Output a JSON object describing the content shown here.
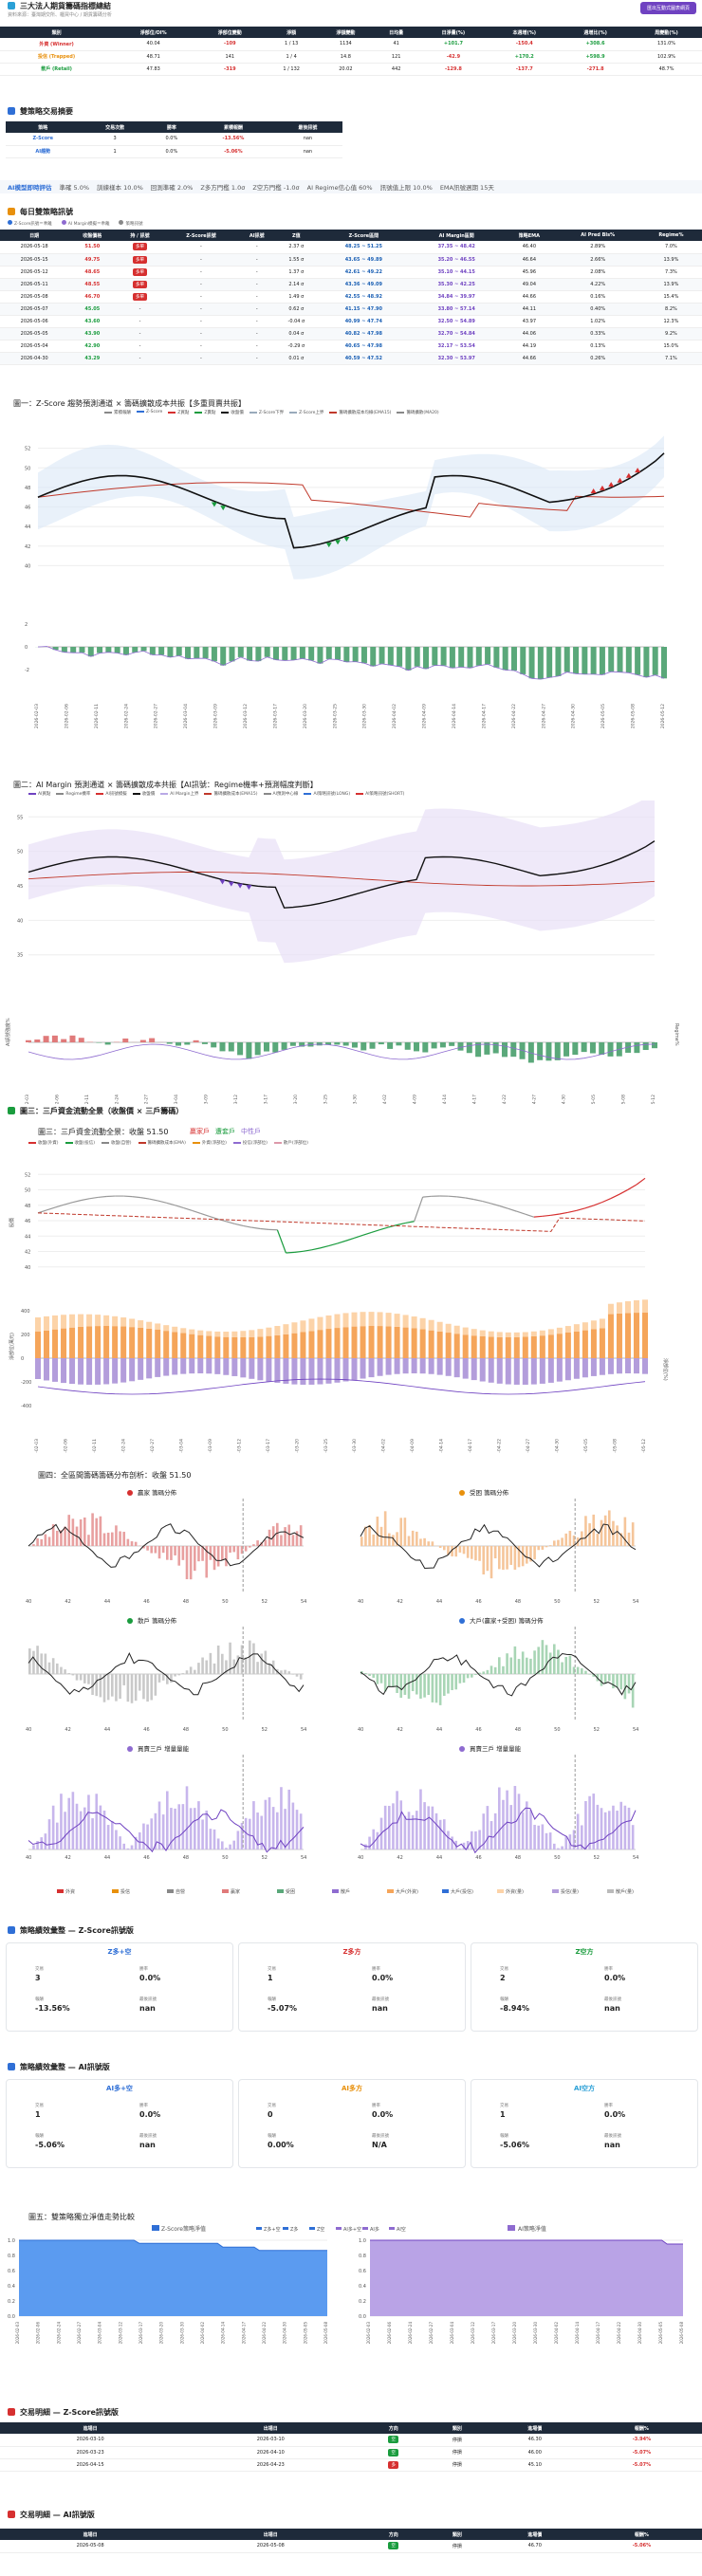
{
  "header": {
    "title": "三大法人期貨籌碼指標總結",
    "subtitle": "資料來源：臺灣期交所、櫃買中心 / 期貨籌碼分析",
    "export_label": "匯出互動式圖表網頁"
  },
  "summary": {
    "columns": [
      "類別",
      "淨部位/OI%",
      "淨部位變動",
      "淨額",
      "淨額變動",
      "日均量",
      "日淨量(%)",
      "本週增(%)",
      "週增比(%)",
      "周變動(%)"
    ],
    "rows": [
      {
        "name": "外資 (Winner)",
        "c1": "40.04",
        "c2": "-109",
        "c3": "1 / 13",
        "c4": "1134",
        "c5": "41",
        "c6": "+101.7",
        "c7": "-150.4",
        "c8": "+308.6",
        "c9": "131.0%"
      },
      {
        "name": "投信 (Trapped)",
        "c1": "48.71",
        "c2": "141",
        "c3": "1 / 4",
        "c4": "14.8",
        "c5": "121",
        "c6": "-42.9",
        "c7": "+170.2",
        "c8": "+598.9",
        "c9": "102.9%"
      },
      {
        "name": "散戶 (Retail)",
        "c1": "47.83",
        "c2": "-319",
        "c3": "1 / 132",
        "c4": "20.02",
        "c5": "442",
        "c6": "-129.8",
        "c7": "-137.7",
        "c8": "-271.8",
        "c9": "48.7%"
      }
    ]
  },
  "strategy": {
    "title": "雙策略交易摘要",
    "columns": [
      "策略",
      "交易次數",
      "勝率",
      "累積報酬",
      "最後訊號"
    ],
    "rows": [
      {
        "name": "Z-Score",
        "n": "3",
        "wr": "0.0%",
        "ret": "-13.56%",
        "last": "nan"
      },
      {
        "name": "AI趨勢",
        "n": "1",
        "wr": "0.0%",
        "ret": "-5.06%",
        "last": "nan"
      }
    ]
  },
  "ai_bar": {
    "label": "AI模型即時評估",
    "items": [
      "準確 5.0%",
      "訓練樣本 10.0%",
      "回測準確 2.0%",
      "Z多方門檻 1.0σ",
      "Z空方門檻 -1.0σ",
      "AI Regime信心值 60%",
      "訊號值上限 10.0%",
      "EMA訊號週期 15天"
    ]
  },
  "signals": {
    "title": "每日雙策略訊號",
    "legend": [
      "Z-Score訊號＝乖離",
      "AI Margin模擬＝乖離",
      "策略訊號"
    ],
    "columns": [
      "日期",
      "收盤價格",
      "持 / 訊號",
      "Z-Score訊號",
      "AI訊號",
      "Z值",
      "Z-Score區間",
      "AI Margin區間",
      "策略EMA",
      "AI Pred Bls%",
      "Regime%"
    ],
    "rows": [
      [
        "2026-05-18",
        "51.50",
        "多單",
        "-",
        "-",
        "2.37 σ",
        "48.25 ~ 51.25",
        "37.35 ~ 48.42",
        "46.40",
        "2.89%",
        "7.0%"
      ],
      [
        "2026-05-15",
        "49.75",
        "多單",
        "-",
        "-",
        "1.55 σ",
        "43.65 ~ 49.89",
        "35.20 ~ 46.55",
        "46.64",
        "2.66%",
        "13.9%"
      ],
      [
        "2026-05-12",
        "48.65",
        "多單",
        "-",
        "-",
        "1.37 σ",
        "42.61 ~ 49.22",
        "35.10 ~ 44.15",
        "45.96",
        "2.08%",
        "7.3%"
      ],
      [
        "2026-05-11",
        "48.55",
        "多單",
        "-",
        "-",
        "2.14 σ",
        "43.36 ~ 49.09",
        "35.30 ~ 42.25",
        "49.04",
        "4.22%",
        "13.9%"
      ],
      [
        "2026-05-08",
        "46.70",
        "多單",
        "-",
        "-",
        "1.49 σ",
        "42.55 ~ 48.92",
        "34.84 ~ 39.97",
        "44.66",
        "0.16%",
        "15.4%"
      ],
      [
        "2026-05-07",
        "45.05",
        "-",
        "-",
        "-",
        "0.62 σ",
        "41.15 ~ 47.90",
        "33.80 ~ 57.14",
        "44.11",
        "0.40%",
        "8.2%"
      ],
      [
        "2026-05-06",
        "43.60",
        "-",
        "-",
        "-",
        "-0.04 σ",
        "40.99 ~ 47.74",
        "32.50 ~ 54.89",
        "43.97",
        "1.02%",
        "12.3%"
      ],
      [
        "2026-05-05",
        "43.90",
        "-",
        "-",
        "-",
        "0.04 σ",
        "40.82 ~ 47.98",
        "32.70 ~ 54.84",
        "44.06",
        "0.33%",
        "9.2%"
      ],
      [
        "2026-05-04",
        "42.90",
        "-",
        "-",
        "-",
        "-0.29 σ",
        "40.65 ~ 47.98",
        "32.17 ~ 53.54",
        "44.19",
        "0.13%",
        "15.0%"
      ],
      [
        "2026-04-30",
        "43.29",
        "-",
        "-",
        "-",
        "0.01 σ",
        "40.59 ~ 47.52",
        "32.30 ~ 53.97",
        "44.66",
        "0.26%",
        "7.1%"
      ]
    ]
  },
  "chart1": {
    "title": "圖一：Z-Score 趨勢預測通道 × 籌碼擴散成本共振【多重買賣共振】",
    "legend": [
      "累積報酬",
      "Z-Score",
      "Z買點",
      "Z賣點",
      "收盤價",
      "Z-Score下界",
      "Z-Score上界",
      "籌碼擴散成本均線(EMA15)",
      "籌碼擴散(MA20)"
    ]
  },
  "chart2": {
    "title": "圖二：AI Margin 預測通道 × 籌碼擴散成本共振【AI訊號：Regime機率+預測幅度判斷】",
    "legend": [
      "AI買點",
      "Regime機率",
      "AI訊號模擬",
      "收盤價",
      "AI Margin上界",
      "籌碼擴散成本(EMA15)",
      "AI預測中心線",
      "AI策略訊號(LONG)",
      "AI策略訊號(SHORT)"
    ],
    "ylabel2": "AI訊號強度%",
    "ylabel3": "Regime%"
  },
  "section3": {
    "title": "圖三：三戶資金流動全景（收盤價 × 三戶籌碼）"
  },
  "chart3": {
    "title": "圖三：三戶資金流動全景：收盤 51.50",
    "tags": [
      "贏家戶",
      "遭套戶",
      "中性戶"
    ],
    "legend": [
      "收盤(外資)",
      "收盤(投信)",
      "收盤(自營)",
      "籌碼擴散成本(EMA)",
      "外資(淨部位)",
      "投信(淨部位)",
      "散戶(淨部位)"
    ],
    "ylabel1": "股價",
    "ylabel2": "淨部位(萬元)",
    "ylabel3": "淨部位(%)"
  },
  "chart4": {
    "title": "圖四：全區間籌碼籌碼分布剖析：收盤 51.50",
    "panels": [
      "贏家 籌碼分佈",
      "受困 籌碼分佈",
      "散戶 籌碼分佈",
      "大戶(贏家+受困) 籌碼分佈",
      "買賣三戶 增量量能",
      "買賣三戶 增量量能"
    ],
    "xticks": [
      "40",
      "42",
      "44",
      "46",
      "48",
      "50",
      "52",
      "54"
    ],
    "legend": [
      "外資",
      "投信",
      "自營",
      "贏家",
      "受困",
      "散戶",
      "大戶(外資)",
      "大戶(投信)",
      "外資(量)",
      "投信(量)",
      "散戶(量)"
    ]
  },
  "perf_z": {
    "title": "策略績效彙整 — Z-Score訊號版",
    "cards": [
      {
        "name": "Z多+空",
        "color": "#2f6fd6",
        "n": "3",
        "wr": "0.0%",
        "ret": "-13.56%",
        "last": "nan"
      },
      {
        "name": "Z多方",
        "color": "#d63030",
        "n": "1",
        "wr": "0.0%",
        "ret": "-5.07%",
        "last": "nan"
      },
      {
        "name": "Z空方",
        "color": "#1a9c3e",
        "n": "2",
        "wr": "0.0%",
        "ret": "-8.94%",
        "last": "nan"
      }
    ]
  },
  "perf_ai": {
    "title": "策略績效彙整 — AI訊號版",
    "cards": [
      {
        "name": "AI多+空",
        "color": "#2f6fd6",
        "n": "1",
        "wr": "0.0%",
        "ret": "-5.06%",
        "last": "nan"
      },
      {
        "name": "AI多方",
        "color": "#e8900c",
        "n": "0",
        "wr": "0.0%",
        "ret": "0.00%",
        "last": "N/A"
      },
      {
        "name": "AI空方",
        "color": "#2aa0d6",
        "n": "1",
        "wr": "0.0%",
        "ret": "-5.06%",
        "last": "nan"
      }
    ]
  },
  "card_labels": {
    "n": "交易",
    "wr": "勝率",
    "ret": "報酬",
    "last": "最後訊號"
  },
  "chart5": {
    "title": "圖五：雙策略獨立淨值走勢比較",
    "legend_left": "Z-Score策略淨值",
    "legend_mid": [
      "Z多+空",
      "Z多",
      "Z空",
      "AI多+空",
      "AI多",
      "AI空"
    ],
    "legend_right": "AI策略淨值"
  },
  "trades_z": {
    "title": "交易明細 — Z-Score訊號版",
    "columns": [
      "進場日",
      "出場日",
      "方向",
      "類別",
      "進場價",
      "報酬%"
    ],
    "rows": [
      [
        "2026-03-10",
        "2026-03-10",
        "空",
        "停損",
        "46.30",
        "-3.94%"
      ],
      [
        "2026-03-23",
        "2026-04-10",
        "空",
        "停損",
        "46.00",
        "-5.07%"
      ],
      [
        "2026-04-15",
        "2026-04-23",
        "多",
        "停損",
        "45.10",
        "-5.07%"
      ]
    ]
  },
  "trades_ai": {
    "title": "交易明細 — AI訊號版",
    "columns": [
      "進場日",
      "出場日",
      "方向",
      "類別",
      "進場價",
      "報酬%"
    ],
    "rows": [
      [
        "2026-05-08",
        "2026-05-08",
        "空",
        "停損",
        "46.70",
        "-5.06%"
      ]
    ]
  },
  "colors": {
    "up": "#d63030",
    "down": "#1a9c3e",
    "blue": "#2f6fd6",
    "purple": "#8e6bd0",
    "orange": "#f39c3a",
    "navy": "#1e2a3a"
  }
}
